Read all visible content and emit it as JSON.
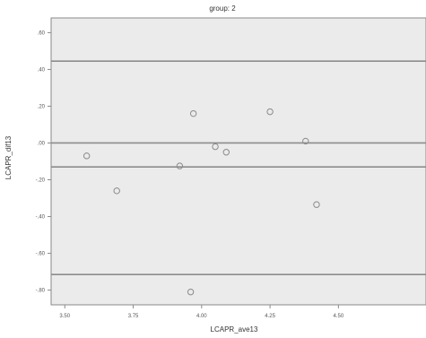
{
  "chart_data": {
    "type": "scatter",
    "title": "group: 2",
    "xlabel": "LCAPR_ave13",
    "ylabel": "LCAPR_dif13",
    "xlim": [
      3.45,
      4.82
    ],
    "ylim": [
      -0.88,
      0.68
    ],
    "x_ticks": [
      3.5,
      3.75,
      4.0,
      4.25,
      4.5
    ],
    "x_tick_labels": [
      "3.50",
      "3.75",
      "4.00",
      "4.25",
      "4.50"
    ],
    "y_ticks": [
      0.6,
      0.4,
      0.2,
      0.0,
      -0.2,
      -0.4,
      -0.6,
      -0.8
    ],
    "y_tick_labels": [
      ".60",
      ".40",
      ".20",
      ".00",
      "-.20",
      "-.40",
      "-.60",
      "-.80"
    ],
    "grid": false,
    "reference_lines": [
      {
        "kind": "upper-limit",
        "y": 0.445
      },
      {
        "kind": "mean",
        "y": 0.0
      },
      {
        "kind": "bias",
        "y": -0.13
      },
      {
        "kind": "lower-limit",
        "y": -0.715
      }
    ],
    "points": [
      {
        "x": 3.58,
        "y": -0.07
      },
      {
        "x": 3.69,
        "y": -0.26
      },
      {
        "x": 3.92,
        "y": -0.125
      },
      {
        "x": 3.97,
        "y": 0.16
      },
      {
        "x": 4.05,
        "y": -0.02
      },
      {
        "x": 4.09,
        "y": -0.05
      },
      {
        "x": 4.25,
        "y": 0.17
      },
      {
        "x": 4.38,
        "y": 0.01
      },
      {
        "x": 4.42,
        "y": -0.335
      },
      {
        "x": 3.96,
        "y": -0.81
      }
    ],
    "colors": {
      "plot_background": "#ebebeb",
      "frame": "#8a8a8a",
      "reference_line": "#8c8c8c",
      "marker_stroke": "#8a8a8a"
    }
  }
}
